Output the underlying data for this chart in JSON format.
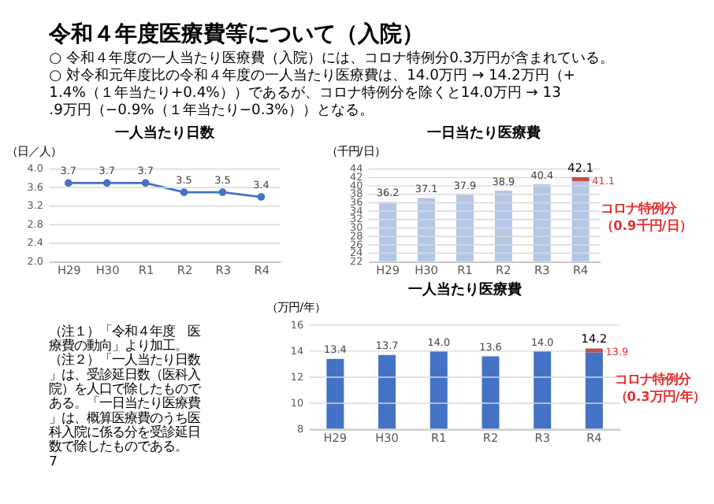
{
  "chart_data": [
    {
      "type": "other",
      "title": "令和４年度医療費等について（入院）",
      "annotations": [
        "○ 令和４年度の一人当たり医療費（入院）には、コロナ特例分0.3万円が含まれている。",
        "○ 対令和元年度比の令和４年度の一人当たり医療費は、14.0万円 → 14.2万円（+1.4%（１年当たり+0.4%））であるが、コロナ特例分を除くと14.0万円 → 13.9万円（−0.9%（１年当たり−0.3%））となる。"
      ]
    },
    {
      "type": "line",
      "title": "一人当たり日数",
      "ylabel": "（日／人）",
      "categories": [
        "H29",
        "H30",
        "R1",
        "R2",
        "R3",
        "R4"
      ],
      "series": [
        {
          "color": "#4472c4",
          "values": [
            3.7,
            3.7,
            3.7,
            3.5,
            3.5,
            3.4
          ]
        }
      ],
      "ylim": [
        2.0,
        4.0
      ],
      "yticks": [
        {
          "value": 2,
          "label": "2.0"
        },
        2.4,
        2.8,
        3.2,
        3.6,
        {
          "value": 4,
          "label": "4.0"
        }
      ],
      "grid": "y",
      "marker": "circle",
      "line_style": "solid",
      "data_labels": true
    },
    {
      "type": "bar",
      "title": "一日当たり医療費",
      "ylabel": "（千円/日）",
      "categories": [
        "H29",
        "H30",
        "R1",
        "R2",
        "R3",
        "R4"
      ],
      "series": [
        {
          "color": "#b4c7e7",
          "values": [
            36.2,
            37.1,
            37.9,
            38.9,
            40.4,
            41.1
          ],
          "value_labels": [
            "36.2",
            "37.1",
            "37.9",
            "38.9",
            "40.4",
            null
          ]
        },
        {
          "color": "#c0504d",
          "values": [
            null,
            null,
            null,
            null,
            null,
            1.0
          ],
          "base": [
            null,
            null,
            null,
            null,
            null,
            41.1
          ],
          "value_labels": [
            null,
            null,
            null,
            null,
            null,
            "42.1"
          ]
        }
      ],
      "ylim": [
        22,
        44
      ],
      "yticks": [
        22,
        24,
        26,
        28,
        30,
        32,
        34,
        36,
        38,
        40,
        42,
        44
      ],
      "grid": "y",
      "annotations": [
        {
          "text": "コロナ特例分（0.9千円/日）",
          "x": "R4",
          "y": 41.6
        },
        {
          "text": "41.1",
          "x": "R4",
          "y": 41.1
        }
      ]
    },
    {
      "type": "bar",
      "title": "一人当たり医療費",
      "ylabel": "（万円/年）",
      "categories": [
        "H29",
        "H30",
        "R1",
        "R2",
        "R3",
        "R4"
      ],
      "series": [
        {
          "color": "#4472c4",
          "values": [
            13.4,
            13.7,
            14.0,
            13.6,
            14.0,
            13.9
          ],
          "value_labels": [
            "13.4",
            "13.7",
            "14.0",
            "13.6",
            "14.0",
            null
          ]
        },
        {
          "color": "#c0504d",
          "values": [
            null,
            null,
            null,
            null,
            null,
            0.3
          ],
          "base": [
            null,
            null,
            null,
            null,
            null,
            13.9
          ],
          "value_labels": [
            null,
            null,
            null,
            null,
            null,
            "14.2"
          ]
        }
      ],
      "ylim": [
        8,
        16
      ],
      "yticks": [
        8,
        10,
        12,
        14,
        16
      ],
      "grid": "y",
      "annotations": [
        {
          "text": "コロナ特例分（0.3万円/年）",
          "x": "R4",
          "y": 14.05
        },
        {
          "text": "13.9",
          "x": "R4",
          "y": 13.9
        },
        "（注１）「令和４年度　医療費の動向」より加工。",
        "（注２）「一人当たり日数」は、受診延日数（医科入院）を人口で除したものである。「一日当たり医療費」は、概算医療費のうち医科入院に係る分を受診延日数で除したものである。",
        "7"
      ]
    }
  ]
}
